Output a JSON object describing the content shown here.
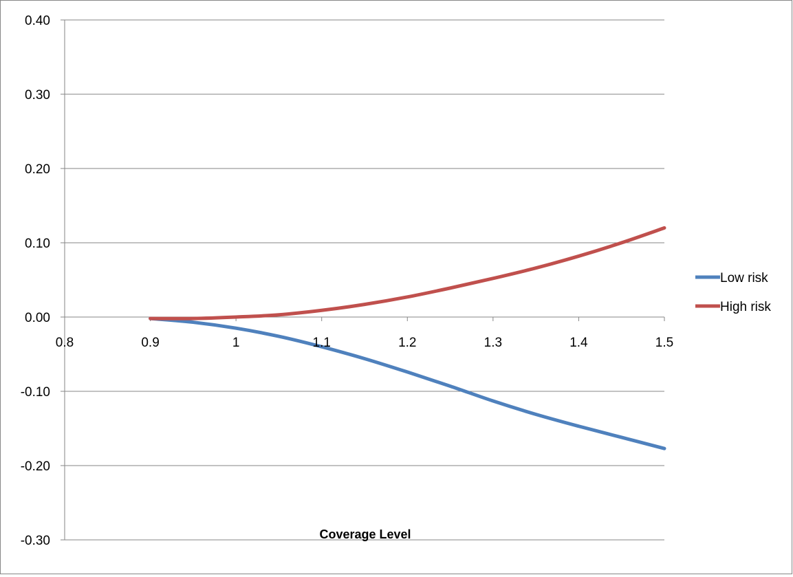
{
  "chart_data": {
    "type": "line",
    "title": "",
    "xlabel": "Coverage Level",
    "ylabel": "",
    "xlim": [
      0.8,
      1.5
    ],
    "ylim": [
      -0.3,
      0.4
    ],
    "x_ticks": [
      "0.8",
      "0.9",
      "1",
      "1.1",
      "1.2",
      "1.3",
      "1.4",
      "1.5"
    ],
    "y_ticks": [
      "0.40",
      "0.30",
      "0.20",
      "0.10",
      "0.00",
      "-0.10",
      "-0.20",
      "-0.30"
    ],
    "grid": "horizontal",
    "legend": "right",
    "series": [
      {
        "name": "Low risk",
        "color": "#4F81BD",
        "x": [
          0.9,
          0.95,
          1.0,
          1.05,
          1.1,
          1.15,
          1.2,
          1.25,
          1.3,
          1.35,
          1.4,
          1.45,
          1.5
        ],
        "values": [
          -0.002,
          -0.007,
          -0.015,
          -0.026,
          -0.04,
          -0.056,
          -0.074,
          -0.093,
          -0.113,
          -0.131,
          -0.147,
          -0.162,
          -0.177
        ]
      },
      {
        "name": "High risk",
        "color": "#C0504D",
        "x": [
          0.9,
          0.95,
          1.0,
          1.05,
          1.1,
          1.15,
          1.2,
          1.25,
          1.3,
          1.35,
          1.4,
          1.45,
          1.5
        ],
        "values": [
          -0.002,
          -0.002,
          0.0,
          0.003,
          0.009,
          0.017,
          0.027,
          0.039,
          0.052,
          0.066,
          0.082,
          0.1,
          0.12
        ]
      }
    ]
  }
}
